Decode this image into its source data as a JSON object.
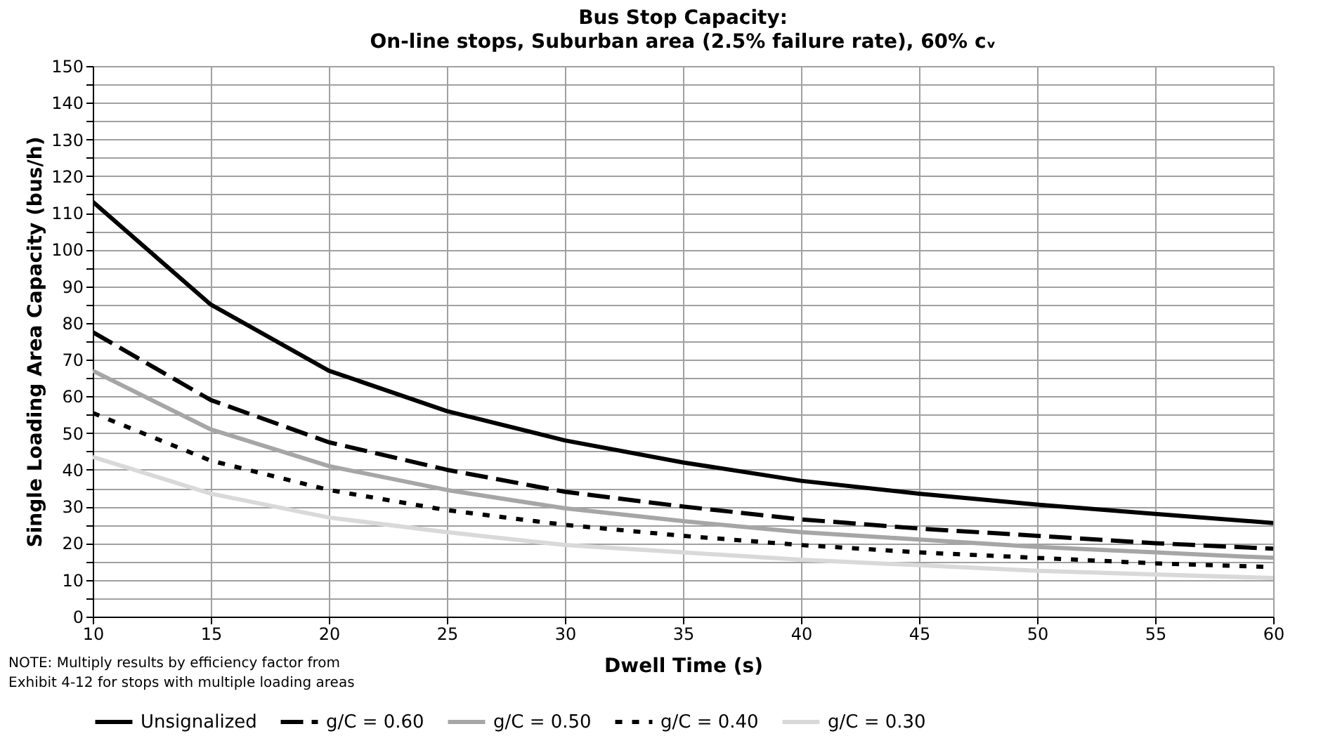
{
  "chart_data": {
    "type": "line",
    "title": "Bus Stop Capacity:",
    "subtitle": "On-line stops, Suburban area (2.5% failure rate), 60% cᵥ",
    "xlabel": "Dwell Time (s)",
    "ylabel": "Single Loading Area Capacity (bus/h)",
    "x": [
      10,
      15,
      20,
      25,
      30,
      35,
      40,
      45,
      50,
      55,
      60
    ],
    "series": [
      {
        "name": "Unsignalized",
        "color": "#000000",
        "line_style": "solid",
        "values": [
          113,
          85,
          67,
          56,
          48,
          42,
          37,
          33.5,
          30.5,
          28,
          25.5
        ]
      },
      {
        "name": "g/C = 0.60",
        "color": "#000000",
        "line_style": "dashed",
        "values": [
          77.5,
          59,
          47.5,
          40,
          34,
          30,
          26.5,
          24,
          22,
          20,
          18.5
        ]
      },
      {
        "name": "g/C = 0.50",
        "color": "#a6a6a6",
        "line_style": "solid",
        "values": [
          67,
          51,
          41,
          34.5,
          29.5,
          26,
          23,
          21,
          19,
          17.5,
          16
        ]
      },
      {
        "name": "g/C = 0.40",
        "color": "#000000",
        "line_style": "dotted",
        "values": [
          55.5,
          42.5,
          34.5,
          29,
          25,
          22,
          19.5,
          17.5,
          16,
          14.5,
          13.5
        ]
      },
      {
        "name": "g/C = 0.30",
        "color": "#d9d9d9",
        "line_style": "solid",
        "values": [
          43.5,
          33.5,
          27,
          23,
          19.5,
          17.5,
          15.5,
          14,
          12.5,
          11.5,
          10.5
        ]
      }
    ],
    "xlim": [
      10,
      60
    ],
    "xticks": [
      10,
      15,
      20,
      25,
      30,
      35,
      40,
      45,
      50,
      55,
      60
    ],
    "ylim": [
      0,
      150
    ],
    "yticks": [
      0,
      {
        "value": 5,
        "label": null
      },
      10,
      {
        "value": 15,
        "label": null
      },
      20,
      {
        "value": 25,
        "label": null
      },
      30,
      {
        "value": 35,
        "label": null
      },
      40,
      {
        "value": 45,
        "label": null
      },
      50,
      {
        "value": 55,
        "label": null
      },
      60,
      {
        "value": 65,
        "label": null
      },
      70,
      {
        "value": 75,
        "label": null
      },
      80,
      {
        "value": 85,
        "label": null
      },
      90,
      {
        "value": 95,
        "label": null
      },
      100,
      {
        "value": 105,
        "label": null
      },
      110,
      {
        "value": 115,
        "label": null
      },
      120,
      {
        "value": 125,
        "label": null
      },
      130,
      {
        "value": 135,
        "label": null
      },
      140,
      {
        "value": 145,
        "label": null
      },
      150
    ],
    "grid": true,
    "legend": "bottom",
    "marker": "none",
    "annotations": [
      "NOTE: Multiply results by efficiency factor from\nExhibit 4-12 for stops with multiple loading areas"
    ]
  }
}
